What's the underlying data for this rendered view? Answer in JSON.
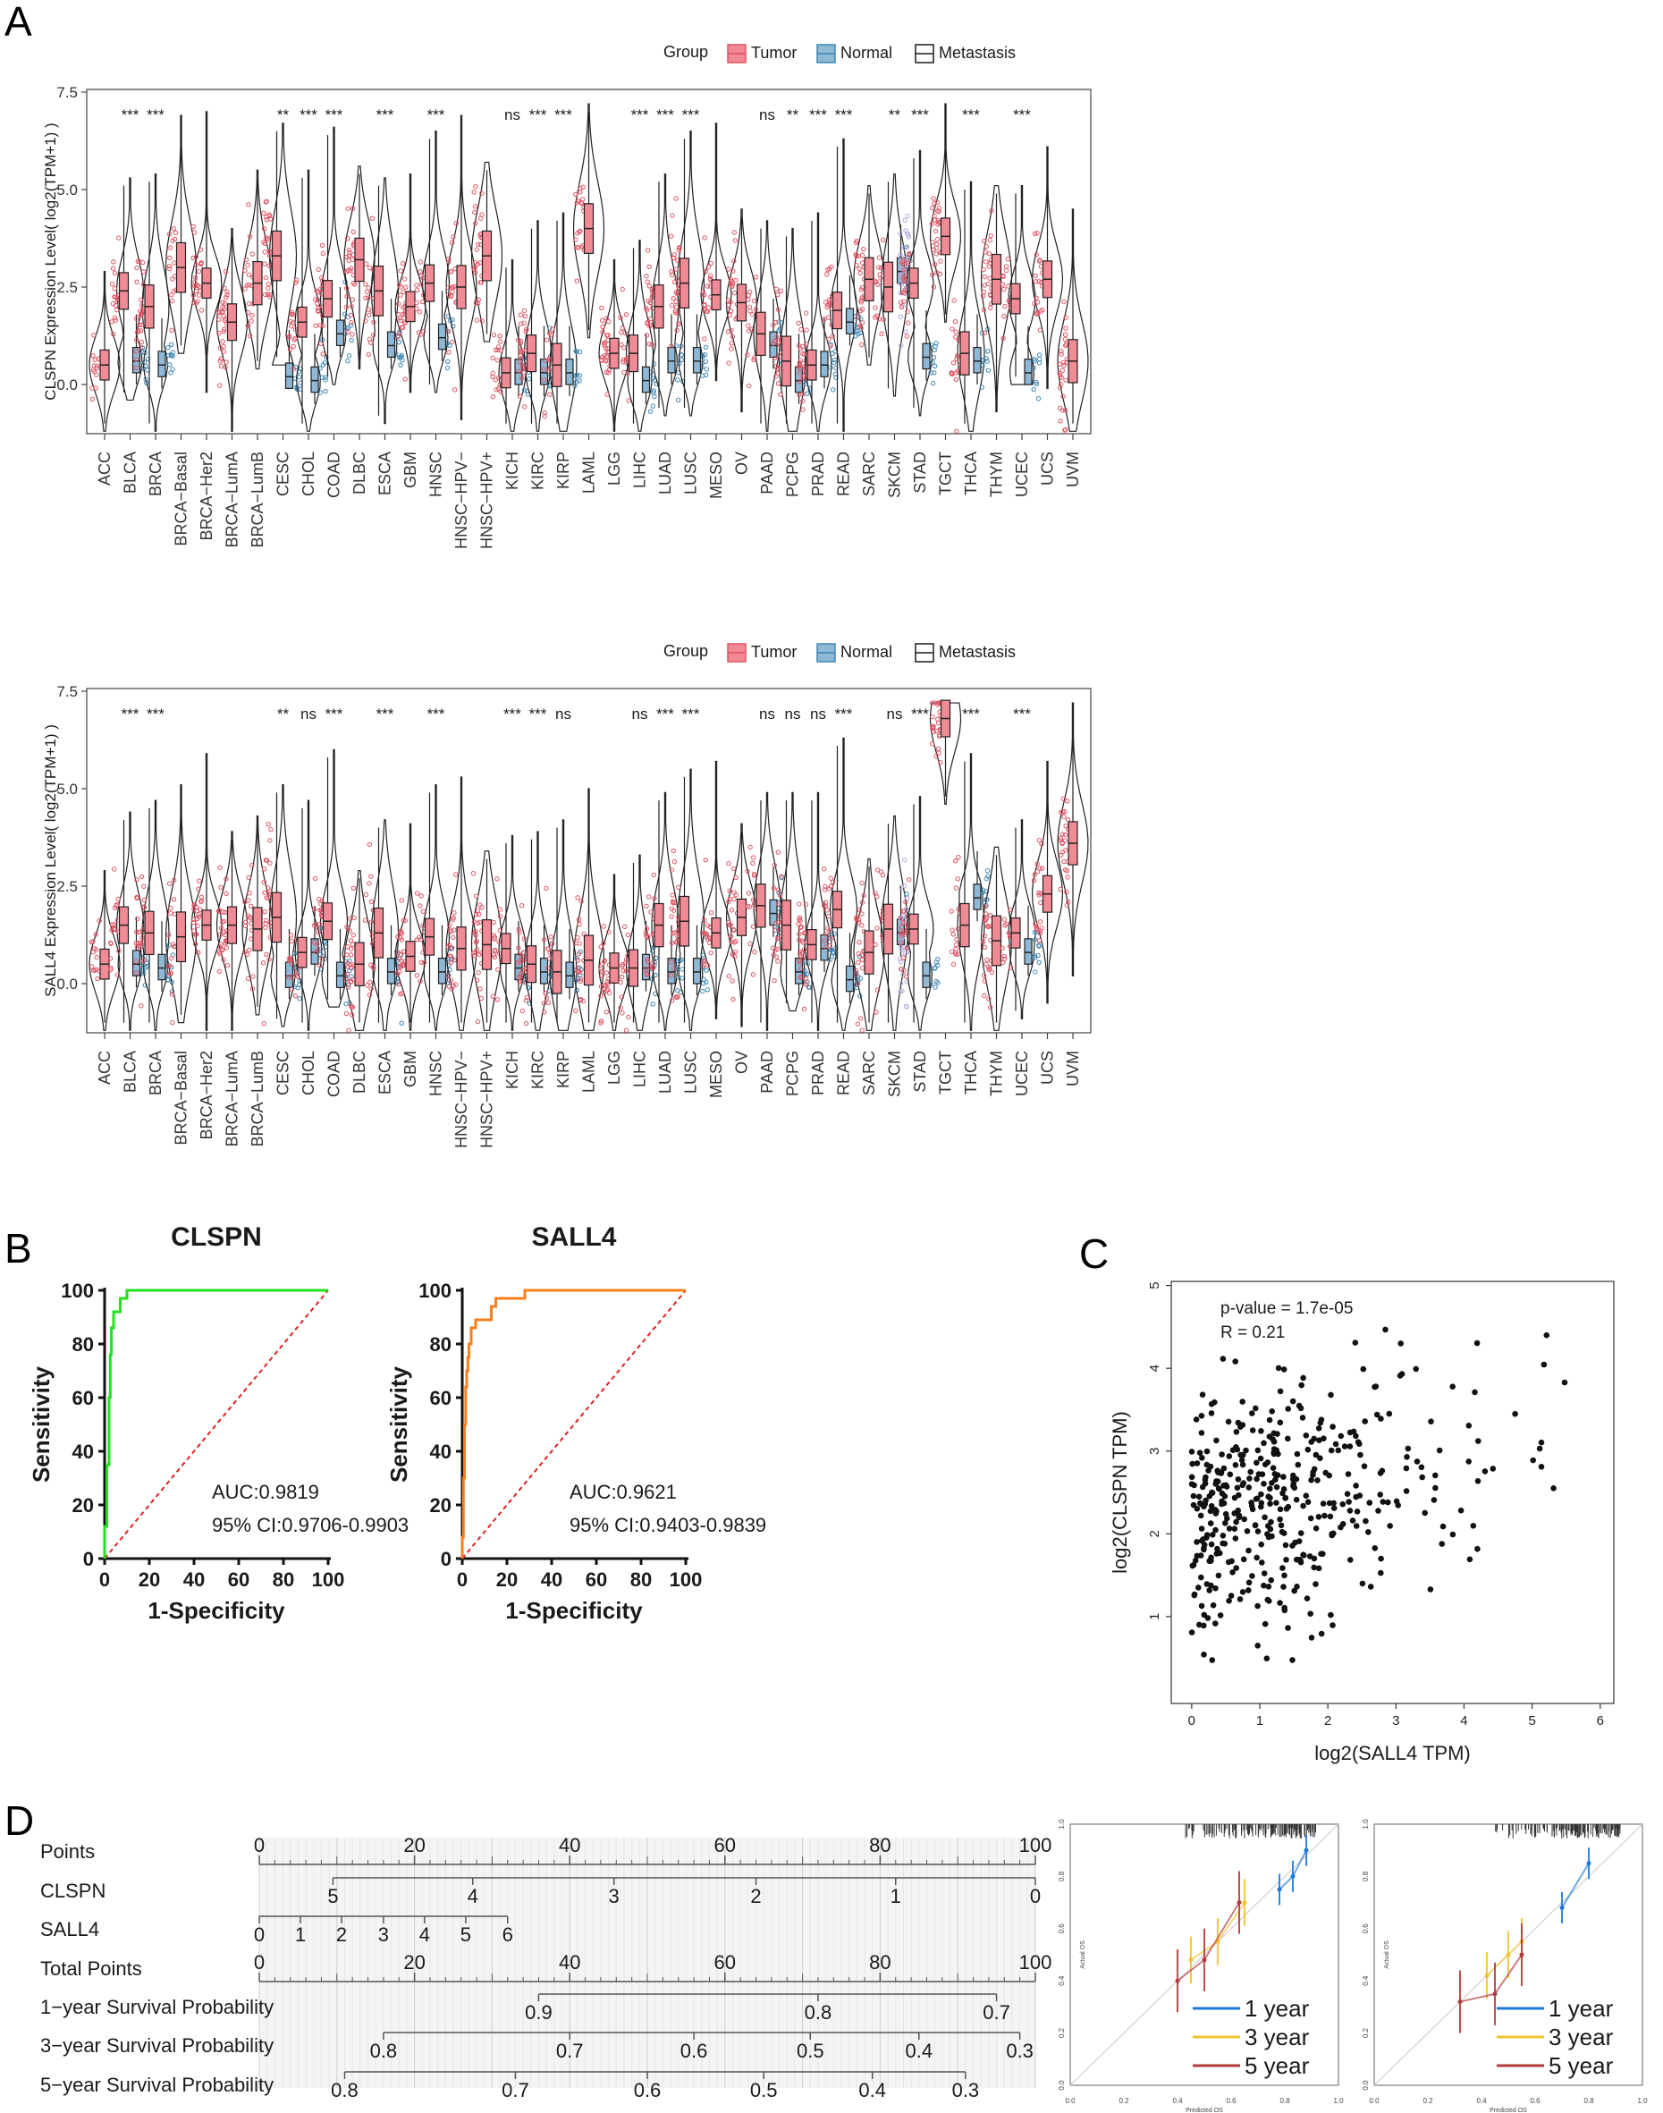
{
  "colors": {
    "tumor": "#e15362",
    "tumor_fill": "#f08a94",
    "normal": "#3d86b4",
    "normal_fill": "#8fb8d6",
    "metastasis": "#b6a8dc",
    "clspn_roc": "#22e022",
    "sall4_roc": "#f7801d",
    "diagonal": "#e02020",
    "cal_1yr": "#1f78d8",
    "cal_3yr": "#f2c230",
    "cal_5yr": "#b23a3a",
    "ink": "#1a1a1a"
  },
  "panel_labels": [
    "A",
    "B",
    "C",
    "D"
  ],
  "chart_data": [
    {
      "id": "A1",
      "type": "violin",
      "legend": {
        "title": "Group",
        "entries": [
          "Tumor",
          "Normal",
          "Metastasis"
        ],
        "placement": "top"
      },
      "ylabel": "CLSPN Expression Level( log2(TPM+1) )",
      "ylim": [
        -1.5,
        7.5
      ],
      "yticks": [
        0.0,
        2.5,
        5.0,
        7.5
      ],
      "ytick_labels": [
        "0.0",
        "2.5",
        "5.0",
        "7.5"
      ],
      "categories": [
        "ACC",
        "BLCA",
        "BRCA",
        "BRCA−Basal",
        "BRCA−Her2",
        "BRCA−LumA",
        "BRCA−LumB",
        "CESC",
        "CHOL",
        "COAD",
        "DLBC",
        "ESCA",
        "GBM",
        "HNSC",
        "HNSC−HPV−",
        "HNSC−HPV+",
        "KICH",
        "KIRC",
        "KIRP",
        "LAML",
        "LGG",
        "LIHC",
        "LUAD",
        "LUSC",
        "MESO",
        "OV",
        "PAAD",
        "PCPG",
        "PRAD",
        "READ",
        "SARC",
        "SKCM",
        "STAD",
        "TGCT",
        "THCA",
        "THYM",
        "UCEC",
        "UCS",
        "UVM"
      ],
      "significance": [
        "",
        "***",
        "***",
        "",
        "",
        "",
        "",
        "**",
        "***",
        "***",
        "",
        "***",
        "",
        "***",
        "",
        "",
        "ns",
        "***",
        "***",
        "",
        "",
        "***",
        "***",
        "***",
        "",
        "",
        "ns",
        "**",
        "***",
        "***",
        "",
        "**",
        "***",
        "",
        "***",
        "",
        "***",
        "",
        ""
      ],
      "tumor_median": [
        0.5,
        2.4,
        2.0,
        3.0,
        2.6,
        1.6,
        2.6,
        3.3,
        1.6,
        2.2,
        3.2,
        2.4,
        2.0,
        2.6,
        2.5,
        3.3,
        0.3,
        0.8,
        0.5,
        4.0,
        0.8,
        0.8,
        2.0,
        2.6,
        2.3,
        2.1,
        1.3,
        0.6,
        0.5,
        1.9,
        2.7,
        2.5,
        2.6,
        3.8,
        0.8,
        2.7,
        2.2,
        2.7,
        0.6
      ],
      "normal_median": [
        null,
        0.6,
        0.5,
        null,
        null,
        null,
        null,
        0.2,
        0.1,
        1.3,
        null,
        1.0,
        null,
        1.2,
        null,
        null,
        0.3,
        0.3,
        0.3,
        null,
        null,
        0.1,
        0.6,
        0.6,
        null,
        null,
        1.0,
        0.1,
        0.5,
        1.6,
        null,
        2.9,
        0.7,
        null,
        0.6,
        null,
        0.3,
        null,
        null
      ],
      "metastasis_median": [
        null,
        null,
        null,
        null,
        null,
        null,
        null,
        null,
        null,
        null,
        null,
        null,
        null,
        null,
        null,
        null,
        null,
        null,
        null,
        null,
        null,
        null,
        null,
        null,
        null,
        null,
        null,
        null,
        null,
        null,
        null,
        2.6,
        null,
        null,
        null,
        null,
        null,
        null,
        null
      ]
    },
    {
      "id": "A2",
      "type": "violin",
      "legend": {
        "title": "Group",
        "entries": [
          "Tumor",
          "Normal",
          "Metastasis"
        ],
        "placement": "top"
      },
      "ylabel": "SALL4 Expression Level( log2(TPM+1) )",
      "ylim": [
        -1.5,
        7.5
      ],
      "yticks": [
        0.0,
        2.5,
        5.0,
        7.5
      ],
      "ytick_labels": [
        "0.0",
        "2.5",
        "5.0",
        "7.5"
      ],
      "categories": [
        "ACC",
        "BLCA",
        "BRCA",
        "BRCA−Basal",
        "BRCA−Her2",
        "BRCA−LumA",
        "BRCA−LumB",
        "CESC",
        "CHOL",
        "COAD",
        "DLBC",
        "ESCA",
        "GBM",
        "HNSC",
        "HNSC−HPV−",
        "HNSC−HPV+",
        "KICH",
        "KIRC",
        "KIRP",
        "LAML",
        "LGG",
        "LIHC",
        "LUAD",
        "LUSC",
        "MESO",
        "OV",
        "PAAD",
        "PCPG",
        "PRAD",
        "READ",
        "SARC",
        "SKCM",
        "STAD",
        "TGCT",
        "THCA",
        "THYM",
        "UCEC",
        "UCS",
        "UVM"
      ],
      "significance": [
        "",
        "***",
        "***",
        "",
        "",
        "",
        "",
        "**",
        "ns",
        "***",
        "",
        "***",
        "",
        "***",
        "",
        "",
        "***",
        "***",
        "ns",
        "",
        "",
        "ns",
        "***",
        "***",
        "",
        "",
        "ns",
        "ns",
        "ns",
        "***",
        "",
        "ns",
        "***",
        "",
        "***",
        "",
        "***",
        "",
        ""
      ],
      "tumor_median": [
        0.5,
        1.5,
        1.3,
        1.2,
        1.5,
        1.5,
        1.4,
        1.7,
        0.8,
        1.6,
        0.5,
        1.3,
        0.7,
        1.2,
        0.9,
        1.0,
        0.9,
        0.5,
        0.3,
        0.6,
        0.4,
        0.4,
        1.5,
        1.6,
        1.3,
        1.7,
        2.0,
        1.5,
        1.0,
        1.9,
        0.8,
        1.4,
        1.4,
        6.8,
        1.5,
        1.1,
        1.3,
        2.3,
        3.6
      ],
      "normal_median": [
        null,
        0.5,
        0.4,
        null,
        null,
        null,
        null,
        0.2,
        0.8,
        0.2,
        null,
        0.3,
        null,
        0.3,
        null,
        null,
        0.4,
        0.3,
        0.2,
        null,
        null,
        0.4,
        0.3,
        0.3,
        null,
        null,
        1.8,
        0.3,
        0.9,
        0.1,
        null,
        1.3,
        0.2,
        null,
        2.2,
        null,
        0.8,
        null,
        null
      ],
      "metastasis_median": [
        null,
        null,
        null,
        null,
        null,
        null,
        null,
        null,
        null,
        null,
        null,
        null,
        null,
        null,
        null,
        null,
        null,
        null,
        null,
        null,
        null,
        null,
        null,
        null,
        null,
        null,
        null,
        null,
        null,
        null,
        null,
        1.2,
        null,
        null,
        null,
        null,
        null,
        null,
        null
      ]
    },
    {
      "id": "B1",
      "type": "line",
      "title": "CLSPN",
      "xlabel": "1-Specificity",
      "ylabel": "Sensitivity",
      "xlim": [
        0,
        100
      ],
      "ylim": [
        0,
        100
      ],
      "ticks": [
        0,
        20,
        40,
        60,
        80,
        100
      ],
      "tick_labels": [
        "0",
        "20",
        "40",
        "60",
        "80",
        "100"
      ],
      "auc_text": "AUC:0.9819",
      "ci_text": "95% CI:0.9706-0.9903",
      "roc": [
        [
          0,
          0
        ],
        [
          0,
          12
        ],
        [
          1,
          12
        ],
        [
          1,
          35
        ],
        [
          2,
          35
        ],
        [
          2,
          60
        ],
        [
          2.5,
          60
        ],
        [
          2.5,
          76
        ],
        [
          3,
          76
        ],
        [
          3,
          86
        ],
        [
          4,
          86
        ],
        [
          4,
          92
        ],
        [
          7,
          92
        ],
        [
          7,
          97
        ],
        [
          10,
          97
        ],
        [
          10,
          100
        ],
        [
          100,
          100
        ]
      ]
    },
    {
      "id": "B2",
      "type": "line",
      "title": "SALL4",
      "xlabel": "1-Specificity",
      "ylabel": "Sensitivity",
      "xlim": [
        0,
        100
      ],
      "ylim": [
        0,
        100
      ],
      "ticks": [
        0,
        20,
        40,
        60,
        80,
        100
      ],
      "tick_labels": [
        "0",
        "20",
        "40",
        "60",
        "80",
        "100"
      ],
      "auc_text": "AUC:0.9621",
      "ci_text": "95% CI:0.9403-0.9839",
      "roc": [
        [
          0,
          0
        ],
        [
          0,
          8
        ],
        [
          0.5,
          8
        ],
        [
          0.5,
          30
        ],
        [
          1,
          30
        ],
        [
          1,
          50
        ],
        [
          1.5,
          50
        ],
        [
          1.5,
          64
        ],
        [
          2,
          64
        ],
        [
          2,
          70
        ],
        [
          2.5,
          70
        ],
        [
          2.5,
          75
        ],
        [
          3,
          75
        ],
        [
          3,
          80
        ],
        [
          4,
          80
        ],
        [
          4,
          86
        ],
        [
          6,
          86
        ],
        [
          6,
          89
        ],
        [
          13,
          89
        ],
        [
          13,
          94
        ],
        [
          15,
          94
        ],
        [
          15,
          97
        ],
        [
          28,
          97
        ],
        [
          28,
          100
        ],
        [
          100,
          100
        ]
      ]
    },
    {
      "id": "C",
      "type": "scatter",
      "xlabel": "log2(SALL4 TPM)",
      "ylabel": "log2(CLSPN TPM)",
      "xlim": [
        -0.3,
        6.2
      ],
      "ylim": [
        -0.05,
        5.05
      ],
      "xticks": [
        0,
        1,
        2,
        3,
        4,
        5,
        6
      ],
      "xtick_labels": [
        "0",
        "1",
        "2",
        "3",
        "4",
        "5",
        "6"
      ],
      "yticks": [
        1,
        2,
        3,
        4,
        5
      ],
      "ytick_labels": [
        "1",
        "2",
        "3",
        "4",
        "5"
      ],
      "p_text": "p-value = 1.7e-05",
      "r_text": "R = 0.21",
      "n_points": 430,
      "sall4_mean": 1.2,
      "clspn_mean": 2.4
    },
    {
      "id": "D-nomogram",
      "type": "nomogram",
      "rows": [
        {
          "label": "Points",
          "ticks": [
            0,
            20,
            40,
            60,
            80,
            100
          ],
          "tick_labels": [
            "0",
            "20",
            "40",
            "60",
            "80",
            "100"
          ]
        },
        {
          "label": "CLSPN",
          "ticks": [
            5,
            4,
            3,
            2,
            1,
            0
          ],
          "tick_labels": [
            "5",
            "4",
            "3",
            "2",
            "1",
            "0"
          ],
          "points_at": [
            9.5,
            27.5,
            45.7,
            64,
            82,
            100
          ]
        },
        {
          "label": "SALL4",
          "ticks": [
            0,
            1,
            2,
            3,
            4,
            5,
            6
          ],
          "tick_labels": [
            "0",
            "1",
            "2",
            "3",
            "4",
            "5",
            "6"
          ],
          "points_at": [
            0,
            5.3,
            10.6,
            16,
            21.3,
            26.6,
            32
          ]
        },
        {
          "label": "Total Points",
          "ticks": [
            0,
            20,
            40,
            60,
            80,
            100
          ],
          "tick_labels": [
            "0",
            "20",
            "40",
            "60",
            "80",
            "100"
          ]
        },
        {
          "label": "1−year Survival Probability",
          "ticks": [
            0.9,
            0.8,
            0.7
          ],
          "tick_labels": [
            "0.9",
            "0.8",
            "0.7"
          ],
          "points_at": [
            36,
            72,
            95
          ]
        },
        {
          "label": "3−year Survival Probability",
          "ticks": [
            0.8,
            0.7,
            0.6,
            0.5,
            0.4,
            0.3
          ],
          "tick_labels": [
            "0.8",
            "0.7",
            "0.6",
            "0.5",
            "0.4",
            "0.3"
          ],
          "points_at": [
            16,
            40,
            56,
            71,
            85,
            98
          ]
        },
        {
          "label": "5−year Survival Probability",
          "ticks": [
            0.8,
            0.7,
            0.6,
            0.5,
            0.4,
            0.3
          ],
          "tick_labels": [
            "0.8",
            "0.7",
            "0.6",
            "0.5",
            "0.4",
            "0.3"
          ],
          "points_at": [
            11,
            33,
            50,
            65,
            79,
            91
          ]
        }
      ]
    },
    {
      "id": "D-calibration-1",
      "type": "line",
      "xlabel": "Predicted OS",
      "ylabel": "Actual OS",
      "xlim": [
        0,
        1
      ],
      "ylim": [
        0,
        1
      ],
      "ticks": [
        0,
        0.2,
        0.4,
        0.6,
        0.8,
        1.0
      ],
      "tick_labels": [
        "0.0",
        "0.2",
        "0.4",
        "0.6",
        "0.8",
        "1.0"
      ],
      "legend": [
        "1 year",
        "3 year",
        "5 year"
      ],
      "series": [
        {
          "name": "1 year",
          "x": [
            0.78,
            0.83,
            0.88
          ],
          "y": [
            0.75,
            0.8,
            0.9
          ]
        },
        {
          "name": "3 year",
          "x": [
            0.45,
            0.55,
            0.65
          ],
          "y": [
            0.48,
            0.55,
            0.7
          ]
        },
        {
          "name": "5 year",
          "x": [
            0.4,
            0.5,
            0.63
          ],
          "y": [
            0.4,
            0.48,
            0.7
          ]
        }
      ]
    },
    {
      "id": "D-calibration-2",
      "type": "line",
      "xlabel": "Predicted OS",
      "ylabel": "Actual OS",
      "xlim": [
        0,
        1
      ],
      "ylim": [
        0,
        1
      ],
      "ticks": [
        0,
        0.2,
        0.4,
        0.6,
        0.8,
        1.0
      ],
      "tick_labels": [
        "0.0",
        "0.2",
        "0.4",
        "0.6",
        "0.8",
        "1.0"
      ],
      "legend": [
        "1 year",
        "3 year",
        "5 year"
      ],
      "series": [
        {
          "name": "1 year",
          "x": [
            0.7,
            0.8
          ],
          "y": [
            0.68,
            0.85
          ]
        },
        {
          "name": "3 year",
          "x": [
            0.42,
            0.5,
            0.55
          ],
          "y": [
            0.42,
            0.5,
            0.55
          ]
        },
        {
          "name": "5 year",
          "x": [
            0.32,
            0.45,
            0.55
          ],
          "y": [
            0.32,
            0.35,
            0.5
          ]
        }
      ]
    }
  ]
}
